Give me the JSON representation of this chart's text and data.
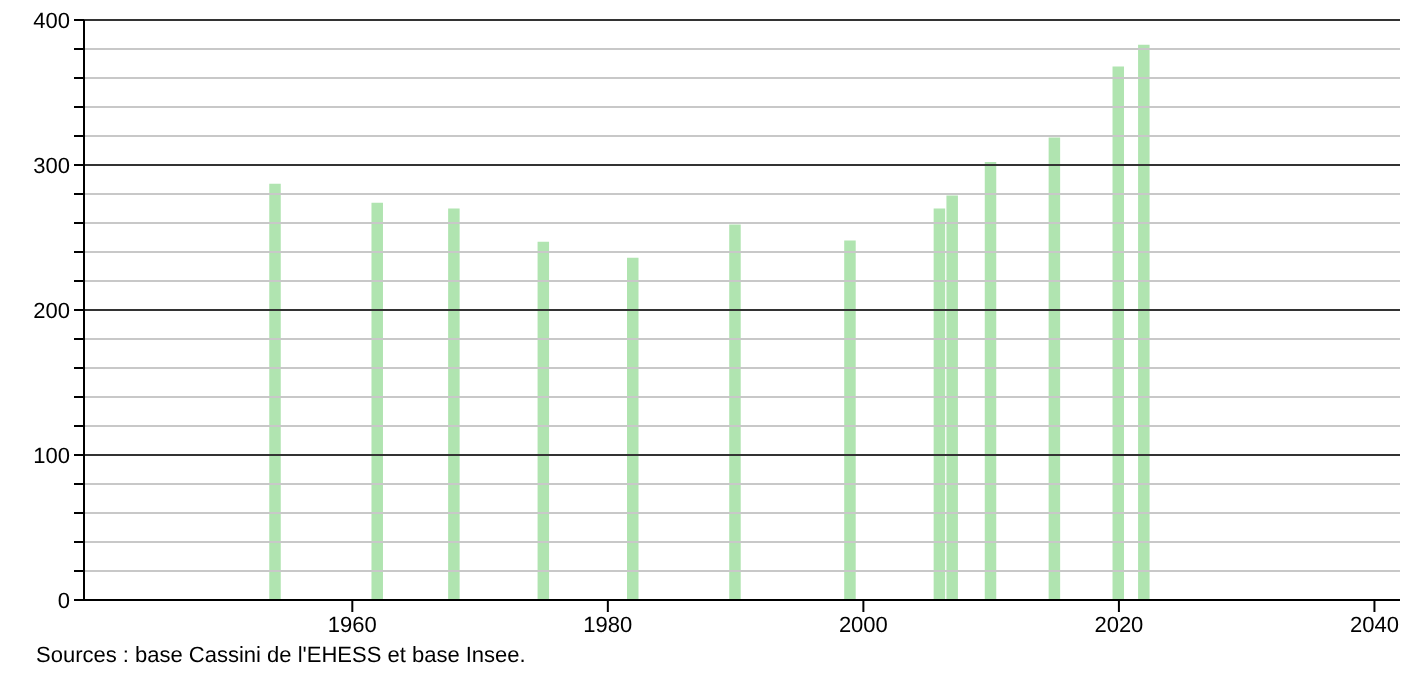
{
  "chart_data": {
    "type": "bar",
    "x": [
      1954,
      1962,
      1968,
      1975,
      1982,
      1990,
      1999,
      2006,
      2007,
      2010,
      2015,
      2020,
      2022
    ],
    "values": [
      287,
      274,
      270,
      247,
      236,
      259,
      248,
      270,
      279,
      302,
      319,
      368,
      383
    ],
    "color": "#b0e4b0",
    "xlim": [
      1939,
      2042
    ],
    "xticks": [
      1960,
      1980,
      2000,
      2020,
      2040
    ],
    "ylim": [
      0,
      400
    ],
    "yticks": [
      0,
      {
        "value": 20,
        "label": null
      },
      {
        "value": 40,
        "label": null
      },
      {
        "value": 60,
        "label": null
      },
      {
        "value": 80,
        "label": null
      },
      100,
      {
        "value": 120,
        "label": null
      },
      {
        "value": 140,
        "label": null
      },
      {
        "value": 160,
        "label": null
      },
      {
        "value": 180,
        "label": null
      },
      200,
      {
        "value": 220,
        "label": null
      },
      {
        "value": 240,
        "label": null
      },
      {
        "value": 260,
        "label": null
      },
      {
        "value": 280,
        "label": null
      },
      300,
      {
        "value": 320,
        "label": null
      },
      {
        "value": 340,
        "label": null
      },
      {
        "value": 360,
        "label": null
      },
      {
        "value": 380,
        "label": null
      },
      400
    ],
    "grid": "y",
    "annotations": [
      "Sources : base Cassini de l'EHESS et base Insee."
    ]
  }
}
